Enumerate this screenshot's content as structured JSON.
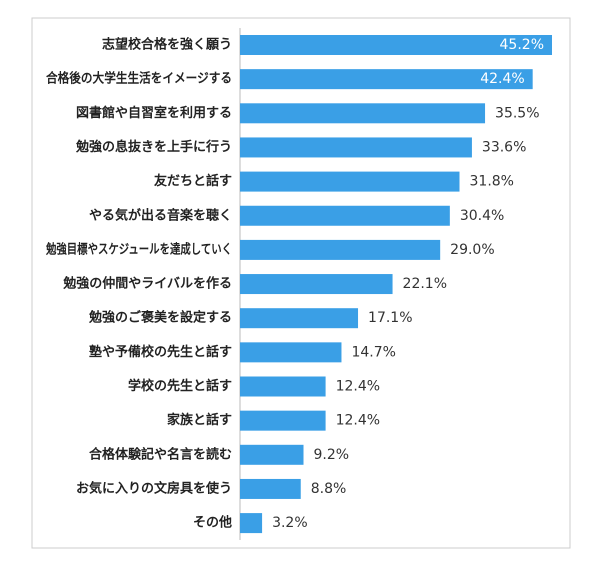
{
  "chart_data": {
    "type": "bar",
    "orientation": "horizontal",
    "categories": [
      "志望校合格を強く願う",
      "合格後の大学生生活をイメージする",
      "図書館や自習室を利用する",
      "勉強の息抜きを上手に行う",
      "友だちと話す",
      "やる気が出る音楽を聴く",
      "勉強目標やスケジュールを達成していく",
      "勉強の仲間やライバルを作る",
      "勉強のご褒美を設定する",
      "塾や予備校の先生と話す",
      "学校の先生と話す",
      "家族と話す",
      "合格体験記や名言を読む",
      "お気に入りの文房具を使う",
      "その他"
    ],
    "values": [
      45.2,
      42.4,
      35.5,
      33.6,
      31.8,
      30.4,
      29.0,
      22.1,
      17.1,
      14.7,
      12.4,
      12.4,
      9.2,
      8.8,
      3.2
    ],
    "value_labels": [
      "45.2%",
      "42.4%",
      "35.5%",
      "33.6%",
      "31.8%",
      "30.4%",
      "29.0%",
      "22.1%",
      "17.1%",
      "14.7%",
      "12.4%",
      "12.4%",
      "9.2%",
      "8.8%",
      "3.2%"
    ],
    "color": "#3a9fe6"
  }
}
